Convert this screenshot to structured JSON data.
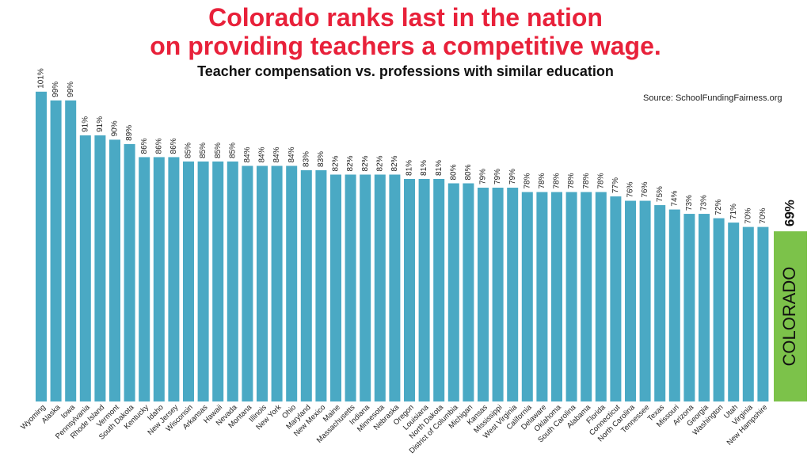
{
  "title_line1": "Colorado ranks last in the nation",
  "title_line2": "on providing teachers a competitive wage.",
  "subtitle": "Teacher compensation vs. professions with similar education",
  "source": "Source: SchoolFundingFairness.org",
  "colors": {
    "bar": "#4aa9c4",
    "highlight": "#7cc24a",
    "title": "#e8213a"
  },
  "chart_data": {
    "type": "bar",
    "title": "Colorado ranks last in the nation on providing teachers a competitive wage.",
    "subtitle": "Teacher compensation vs. professions with similar education",
    "xlabel": "",
    "ylabel": "",
    "value_suffix": "%",
    "categories": [
      "Wyoming",
      "Alaska",
      "Iowa",
      "Pennsylvania",
      "Rhode Island",
      "Vermont",
      "South Dakota",
      "Kentucky",
      "Idaho",
      "New Jersey",
      "Wisconsin",
      "Arkansas",
      "Hawaii",
      "Nevada",
      "Montana",
      "Illinois",
      "New York",
      "Ohio",
      "Maryland",
      "New Mexico",
      "Maine",
      "Massachusetts",
      "Indiana",
      "Minnesota",
      "Nebraska",
      "Oregon",
      "Louisiana",
      "North Dakota",
      "District of Columbia",
      "Michigan",
      "Kansas",
      "Mississippi",
      "West Virginia",
      "California",
      "Delaware",
      "Oklahoma",
      "South Carolina",
      "Alabama",
      "Florida",
      "Connecticut",
      "North Carolina",
      "Tennessee",
      "Texas",
      "Missouri",
      "Arizona",
      "Georgia",
      "Washington",
      "Utah",
      "Virginia",
      "New Hampshire"
    ],
    "values": [
      101,
      99,
      99,
      91,
      91,
      90,
      89,
      86,
      86,
      86,
      85,
      85,
      85,
      85,
      84,
      84,
      84,
      84,
      83,
      83,
      82,
      82,
      82,
      82,
      82,
      81,
      81,
      81,
      80,
      80,
      79,
      79,
      79,
      78,
      78,
      78,
      78,
      78,
      78,
      77,
      76,
      76,
      75,
      74,
      73,
      73,
      72,
      71,
      70,
      70
    ],
    "highlight": {
      "label": "COLORADO",
      "value": 69,
      "value_label": "69%"
    }
  }
}
